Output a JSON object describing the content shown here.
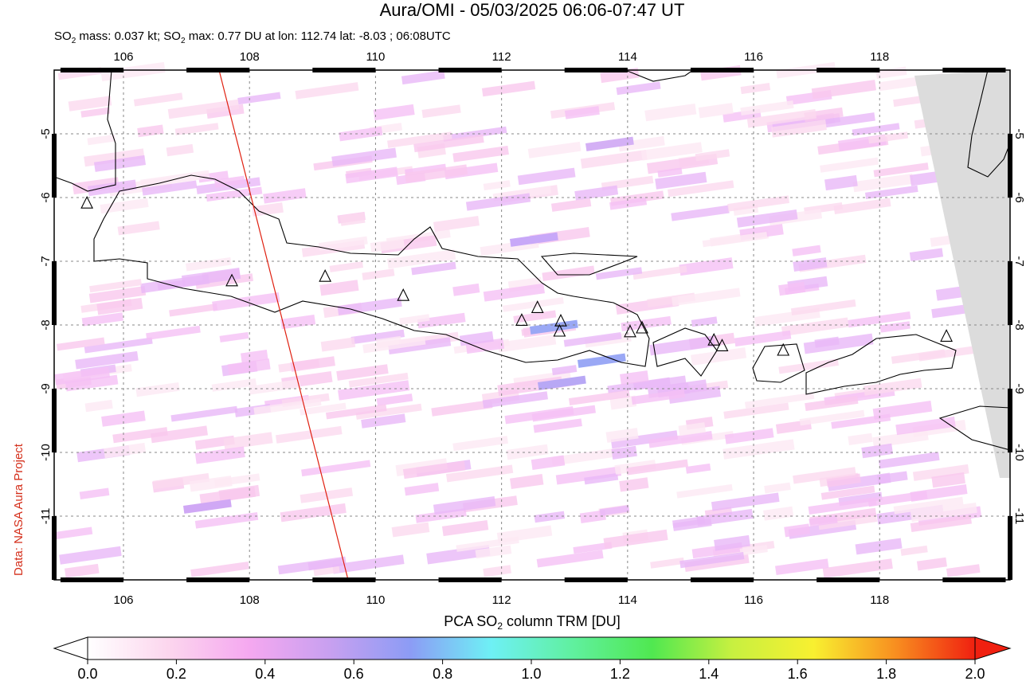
{
  "title": "Aura/OMI - 05/03/2025 06:06-07:47 UT",
  "subtitle": [
    "SO",
    "2",
    " mass: 0.037 kt; SO",
    "2",
    " max: 0.77 DU at lon: 112.74 lat: -8.03 ; 06:08UTC"
  ],
  "side_label": "Data: NASA Aura Project",
  "map": {
    "xlim": [
      104.9,
      120.07
    ],
    "ylim": [
      -12,
      -4
    ],
    "xticks": [
      106,
      108,
      110,
      112,
      114,
      116,
      118
    ],
    "yticks": [
      -5,
      -6,
      -7,
      -8,
      -9,
      -10,
      -11
    ],
    "grid": true,
    "volcanoes": [
      {
        "lon": 105.42,
        "lat": -6.09
      },
      {
        "lon": 107.72,
        "lat": -7.31
      },
      {
        "lon": 109.2,
        "lat": -7.24
      },
      {
        "lon": 110.44,
        "lat": -7.54
      },
      {
        "lon": 112.32,
        "lat": -7.93
      },
      {
        "lon": 112.57,
        "lat": -7.73
      },
      {
        "lon": 112.94,
        "lat": -7.94
      },
      {
        "lon": 112.92,
        "lat": -8.1
      },
      {
        "lon": 114.04,
        "lat": -8.11
      },
      {
        "lon": 114.23,
        "lat": -8.05
      },
      {
        "lon": 115.37,
        "lat": -8.24
      },
      {
        "lon": 115.5,
        "lat": -8.33
      },
      {
        "lon": 116.47,
        "lat": -8.4
      },
      {
        "lon": 119.06,
        "lat": -8.18
      }
    ]
  },
  "colorbar": {
    "label": [
      "PCA SO",
      "2",
      " column TRM [DU]"
    ],
    "lim": [
      0,
      2
    ],
    "colors": [
      "#ffffff",
      "#fcd6ee",
      "#f5a8f0",
      "#c8a0f0",
      "#8c9cf5",
      "#6ef0f5",
      "#60f0a0",
      "#50e850",
      "#c8f040",
      "#f8f030",
      "#f89020",
      "#f02010"
    ],
    "ticks": [
      {
        "value": 0,
        "label": "0.0"
      },
      {
        "value": 0.2,
        "label": "0.2"
      },
      {
        "value": 0.4,
        "label": "0.4"
      },
      {
        "value": 0.6,
        "label": "0.6"
      },
      {
        "value": 0.8,
        "label": "0.8"
      },
      {
        "value": 1,
        "label": "1.0"
      },
      {
        "value": 1.2,
        "label": "1.2"
      },
      {
        "value": 1.4,
        "label": "1.4"
      },
      {
        "value": 1.6,
        "label": "1.6"
      },
      {
        "value": 1.8,
        "label": "1.8"
      },
      {
        "value": 2,
        "label": "2.0"
      }
    ]
  }
}
